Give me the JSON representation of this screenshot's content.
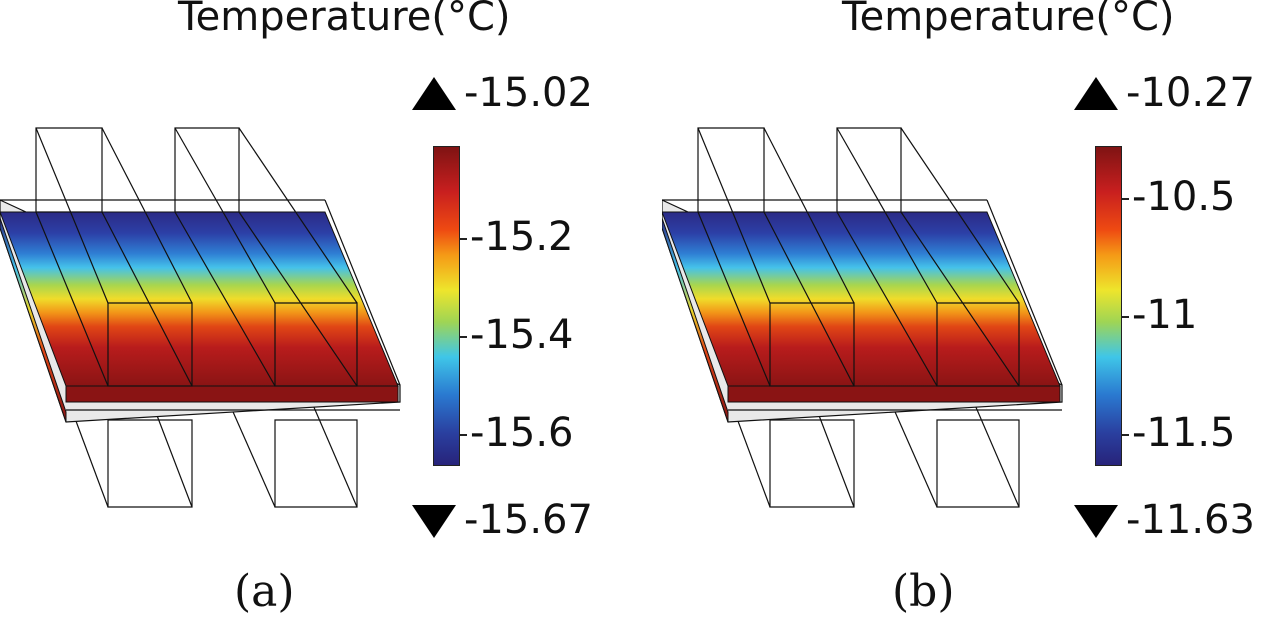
{
  "panels": [
    {
      "id": "a",
      "title": "Temperature(°C)",
      "colorbar_max": "-15.02",
      "colorbar_min": "-15.67",
      "ticks": [
        "-15.2",
        "-15.4",
        "-15.6"
      ],
      "tick_values": [
        -15.2,
        -15.4,
        -15.6
      ],
      "range": [
        -15.67,
        -15.02
      ],
      "caption": "(a)"
    },
    {
      "id": "b",
      "title": "Temperature(°C)",
      "colorbar_max": "-10.27",
      "colorbar_min": "-11.63",
      "ticks": [
        "-10.5",
        "-11",
        "-11.5"
      ],
      "tick_values": [
        -10.5,
        -11,
        -11.5
      ],
      "range": [
        -11.63,
        -10.27
      ],
      "caption": "(b)"
    }
  ],
  "colormap": [
    "#7f1313",
    "#c81f1f",
    "#ee4a12",
    "#f59a16",
    "#eee52c",
    "#9fd554",
    "#3fc6e8",
    "#2a79d0",
    "#2a3f9f",
    "#27237a"
  ]
}
